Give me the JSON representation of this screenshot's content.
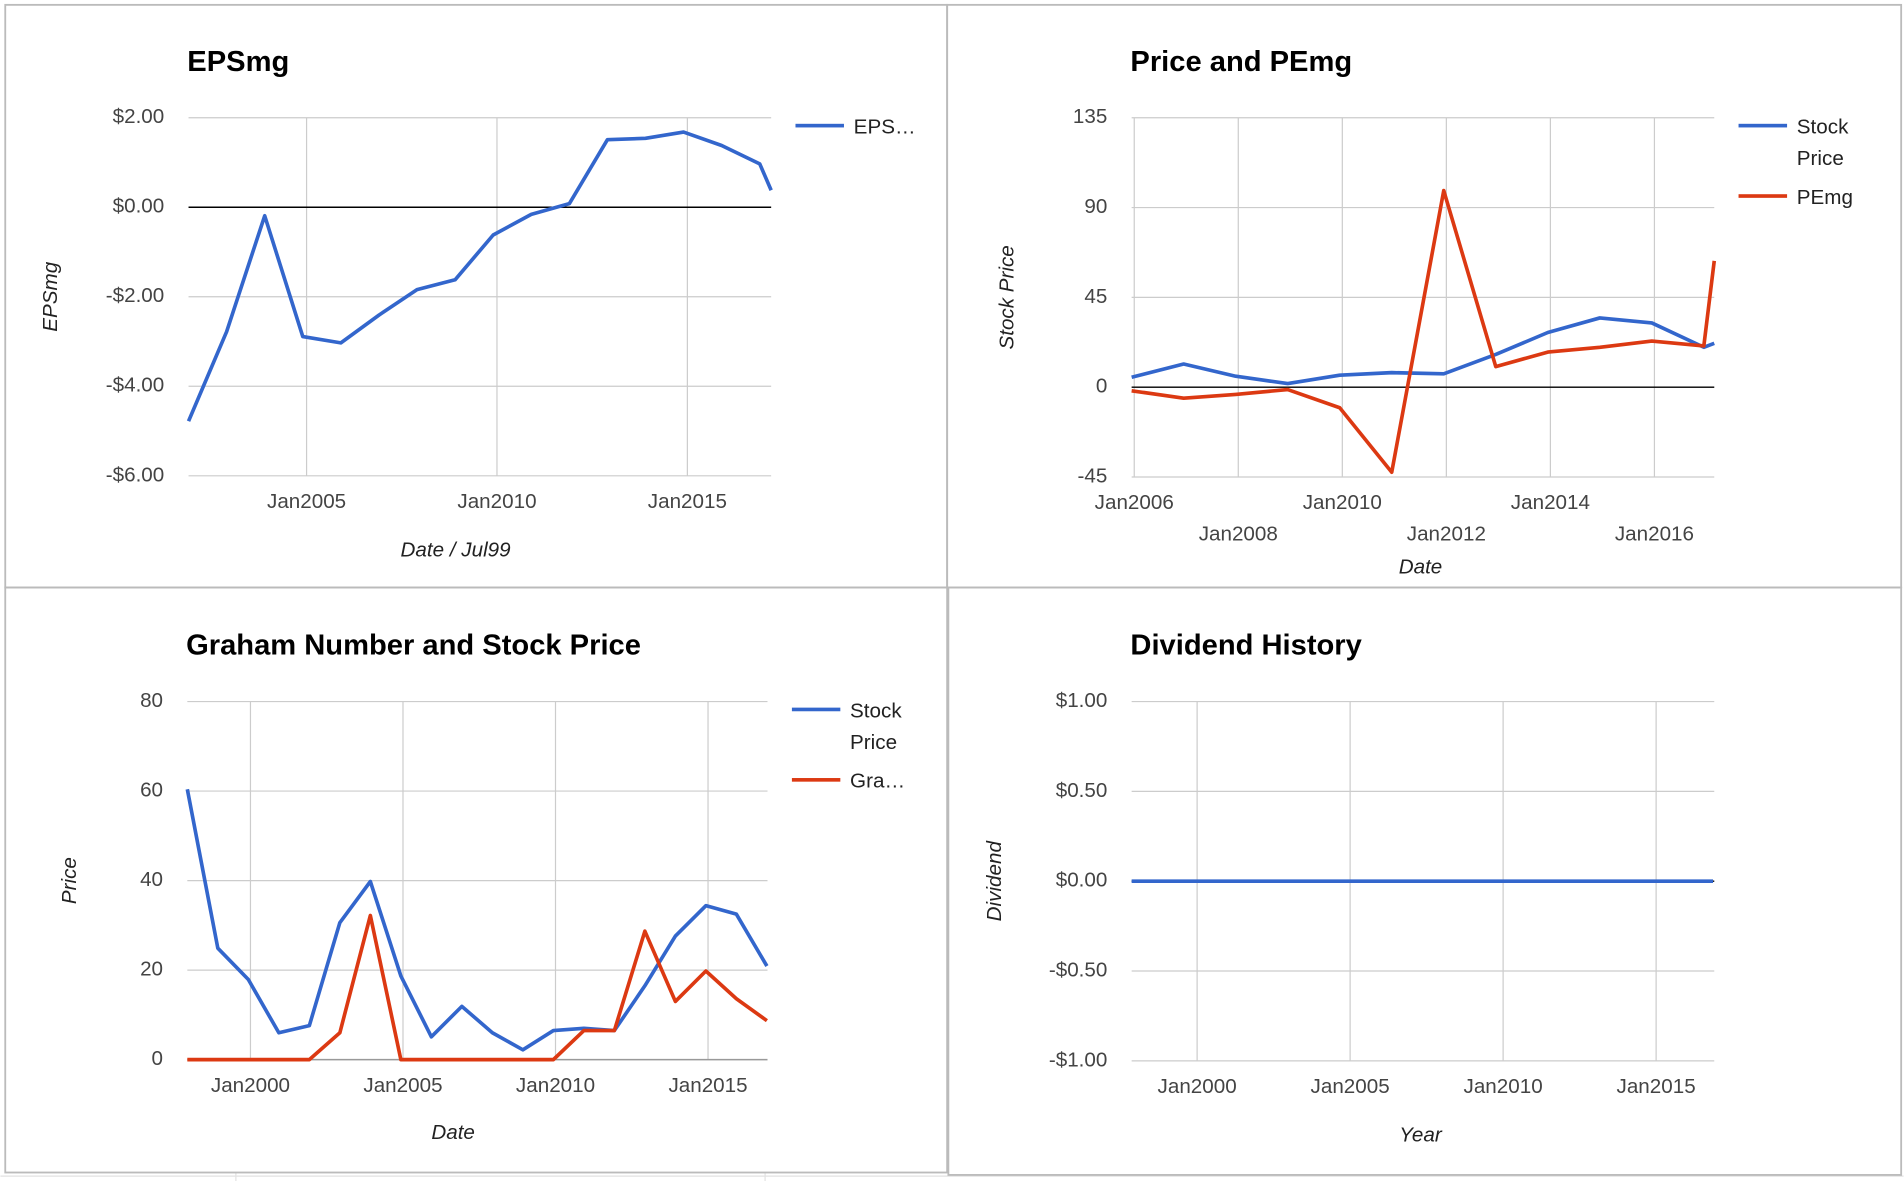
{
  "chart_data": [
    {
      "type": "line",
      "title": "EPSmg",
      "xlabel": "Date / Jul99",
      "ylabel": "EPSmg",
      "x": [
        2001.9,
        2002.9,
        2003.9,
        2004.9,
        2005.9,
        2006.9,
        2007.9,
        2008.9,
        2009.9,
        2010.9,
        2011.9,
        2012.9,
        2013.9,
        2014.9,
        2015.9,
        2016.9,
        2017.2
      ],
      "series": [
        {
          "name": "EPS…",
          "color": "#3366cc",
          "values": [
            -4.78,
            -2.78,
            -0.19,
            -2.89,
            -3.03,
            -2.41,
            -1.84,
            -1.62,
            -0.62,
            -0.16,
            0.08,
            1.51,
            1.54,
            1.68,
            1.38,
            0.97,
            0.38
          ]
        }
      ],
      "xlim": [
        2001.9,
        2017.2
      ],
      "ylim": [
        -6,
        2
      ],
      "xticks": [
        {
          "value": 2005,
          "label": "Jan2005"
        },
        {
          "value": 2010,
          "label": "Jan2010"
        },
        {
          "value": 2015,
          "label": "Jan2015"
        }
      ],
      "yticks": [
        {
          "value": -6,
          "label": "-$6.00"
        },
        {
          "value": -4,
          "label": "-$4.00"
        },
        {
          "value": -2,
          "label": "-$2.00"
        },
        {
          "value": 0,
          "label": "$0.00"
        },
        {
          "value": 2,
          "label": "$2.00"
        }
      ],
      "grid": true
    },
    {
      "type": "line",
      "title": "Price and PEmg",
      "xlabel": "Date",
      "ylabel": "Stock Price",
      "x": [
        2005.95,
        2006.95,
        2007.95,
        2008.95,
        2009.95,
        2010.95,
        2011.95,
        2012.95,
        2013.95,
        2014.95,
        2015.95,
        2016.95,
        2017.15
      ],
      "series": [
        {
          "name": "Stock Price",
          "color": "#3366cc",
          "values": [
            5,
            11.6,
            5.5,
            1.8,
            6,
            7.3,
            6.7,
            16.4,
            27.4,
            34.7,
            32.2,
            20,
            22
          ]
        },
        {
          "name": "PEmg",
          "color": "#dc3912",
          "values": [
            -1.8,
            -5.5,
            -3.6,
            -1.2,
            -10.3,
            -42.6,
            98.5,
            10.3,
            17.6,
            20,
            23.1,
            20.7,
            63.3
          ]
        }
      ],
      "xlim": [
        2005.95,
        2017.15
      ],
      "ylim": [
        -45,
        135
      ],
      "xticks": [
        {
          "value": 2006,
          "label": "Jan2006"
        },
        {
          "value": 2008,
          "label": "Jan2008"
        },
        {
          "value": 2010,
          "label": "Jan2010"
        },
        {
          "value": 2012,
          "label": "Jan2012"
        },
        {
          "value": 2014,
          "label": "Jan2014"
        },
        {
          "value": 2016,
          "label": "Jan2016"
        }
      ],
      "yticks": [
        -45,
        0,
        45,
        90,
        135
      ],
      "grid": true
    },
    {
      "type": "line",
      "title": "Graham Number and Stock Price",
      "xlabel": "Date",
      "ylabel": "Price",
      "x": [
        1997.93,
        1998.93,
        1999.93,
        2000.93,
        2001.93,
        2002.93,
        2003.93,
        2004.93,
        2005.93,
        2006.93,
        2007.93,
        2008.93,
        2009.93,
        2010.93,
        2011.93,
        2012.93,
        2013.93,
        2014.93,
        2015.93,
        2016.93
      ],
      "series": [
        {
          "name": "Stock Price",
          "color": "#3366cc",
          "values": [
            60.4,
            24.9,
            17.9,
            6,
            7.6,
            30.6,
            39.8,
            18.7,
            5.1,
            11.9,
            6,
            2.2,
            6.5,
            7,
            6.5,
            16.5,
            27.6,
            34.4,
            32.5,
            20.9
          ]
        },
        {
          "name": "Gra…",
          "color": "#dc3912",
          "values": [
            0,
            0,
            0,
            0,
            0,
            6,
            32.2,
            0,
            0,
            0,
            0,
            0,
            0,
            6.5,
            6.5,
            28.7,
            13,
            19.8,
            13.6,
            8.7
          ]
        }
      ],
      "xlim": [
        1997.93,
        2016.95
      ],
      "ylim": [
        0,
        80
      ],
      "xticks": [
        {
          "value": 2000,
          "label": "Jan2000"
        },
        {
          "value": 2005,
          "label": "Jan2005"
        },
        {
          "value": 2010,
          "label": "Jan2010"
        },
        {
          "value": 2015,
          "label": "Jan2015"
        }
      ],
      "yticks": [
        0,
        20,
        40,
        60,
        80
      ],
      "grid": true
    },
    {
      "type": "line",
      "title": "Dividend History",
      "xlabel": "Year",
      "ylabel": "Dividend",
      "x": [
        1997.86,
        1998.86,
        1999.86,
        2000.86,
        2001.86,
        2002.86,
        2003.86,
        2004.86,
        2005.86,
        2006.86,
        2007.86,
        2008.86,
        2009.86,
        2010.86,
        2011.86,
        2012.86,
        2013.86,
        2014.86,
        2015.86,
        2016.86
      ],
      "series": [
        {
          "color": "#3366cc",
          "values": [
            0,
            0,
            0,
            0,
            0,
            0,
            0,
            0,
            0,
            0,
            0,
            0,
            0,
            0,
            0,
            0,
            0,
            0,
            0,
            0
          ]
        }
      ],
      "xlim": [
        1997.86,
        2016.9
      ],
      "ylim": [
        -1,
        1
      ],
      "xticks": [
        {
          "value": 2000,
          "label": "Jan2000"
        },
        {
          "value": 2005,
          "label": "Jan2005"
        },
        {
          "value": 2010,
          "label": "Jan2010"
        },
        {
          "value": 2015,
          "label": "Jan2015"
        }
      ],
      "yticks": [
        {
          "value": -1,
          "label": "-$1.00"
        },
        {
          "value": -0.5,
          "label": "-$0.50"
        },
        {
          "value": 0,
          "label": "$0.00"
        },
        {
          "value": 0.5,
          "label": "$0.50"
        },
        {
          "value": 1,
          "label": "$1.00"
        }
      ],
      "grid": true
    }
  ]
}
